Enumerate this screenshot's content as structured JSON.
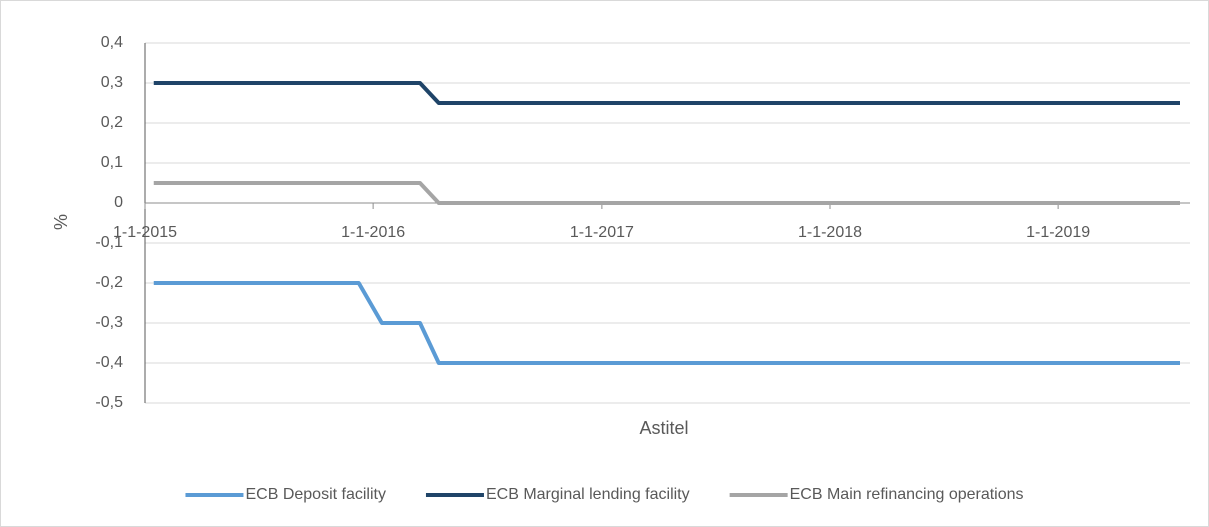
{
  "chart_data": {
    "type": "line",
    "x_label": "Astitel",
    "y_label": "%",
    "x": [
      "2015-01-15",
      "2015-12-09",
      "2016-01-15",
      "2016-03-16",
      "2016-04-15",
      "2019-07-15"
    ],
    "series": [
      {
        "name": "ECB Deposit facility",
        "color": "#5b9bd5",
        "values": [
          -0.2,
          -0.2,
          -0.3,
          -0.3,
          -0.4,
          -0.4
        ]
      },
      {
        "name": "ECB Marginal lending facility",
        "color": "#1f4468",
        "values": [
          0.3,
          0.3,
          0.3,
          0.3,
          0.25,
          0.25
        ]
      },
      {
        "name": "ECB Main refinancing operations",
        "color": "#a5a5a5",
        "values": [
          0.05,
          0.05,
          0.05,
          0.05,
          0,
          0
        ]
      }
    ],
    "xlim": [
      "2015-01-01",
      "2019-07-31"
    ],
    "xticks": [
      {
        "value": "2015-01-01",
        "label": "1-1-2015"
      },
      {
        "value": "2016-01-01",
        "label": "1-1-2016"
      },
      {
        "value": "2017-01-01",
        "label": "1-1-2017"
      },
      {
        "value": "2018-01-01",
        "label": "1-1-2018"
      },
      {
        "value": "2019-01-01",
        "label": "1-1-2019"
      }
    ],
    "ylim": [
      -0.5,
      0.4
    ],
    "yticks": [
      {
        "value": 0.4,
        "label": "0,4"
      },
      {
        "value": 0.3,
        "label": "0,3"
      },
      {
        "value": 0.2,
        "label": "0,2"
      },
      {
        "value": 0.1,
        "label": "0,1"
      },
      0,
      {
        "value": -0.1,
        "label": "-0,1"
      },
      {
        "value": -0.2,
        "label": "-0,2"
      },
      {
        "value": -0.3,
        "label": "-0,3"
      },
      {
        "value": -0.4,
        "label": "-0,4"
      },
      {
        "value": -0.5,
        "label": "-0,5"
      }
    ],
    "grid": true,
    "legend": "bottom"
  }
}
